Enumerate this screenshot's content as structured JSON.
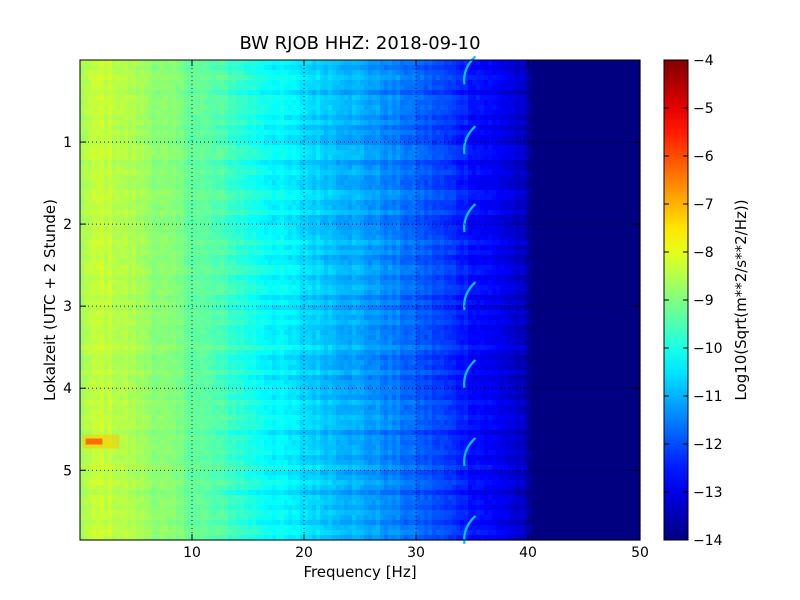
{
  "chart_data": {
    "type": "heatmap",
    "title": "BW RJOB HHZ: 2018-09-10",
    "xlabel": "Frequency [Hz]",
    "ylabel": "Lokalzeit (UTC + 2 Stunde)",
    "xlim": [
      0,
      50
    ],
    "ylim": [
      5.85,
      0
    ],
    "x_ticks": [
      10,
      20,
      30,
      40,
      50
    ],
    "y_ticks": [
      1,
      2,
      3,
      4,
      5
    ],
    "grid": true,
    "grid_style": "dotted",
    "colormap": "jet",
    "colorbar": {
      "label": "Log10(Sqrt(m**2/s**2/Hz))",
      "range": [
        -14,
        -4
      ],
      "ticks": [
        -4,
        -5,
        -6,
        -7,
        -8,
        -9,
        -10,
        -11,
        -12,
        -13,
        -14
      ]
    },
    "profile": {
      "description_units": "frequency Hz vs typical log10 amplitude",
      "frequency": [
        0,
        2,
        5,
        8,
        10,
        13,
        16,
        20,
        24,
        28,
        32,
        35,
        38,
        39.5,
        40.5,
        50
      ],
      "log_amplitude": [
        -8.6,
        -8.3,
        -8.6,
        -9.0,
        -9.2,
        -9.6,
        -10.1,
        -10.6,
        -11.0,
        -11.5,
        -12.1,
        -12.6,
        -13.0,
        -13.4,
        -14.0,
        -14.0
      ]
    },
    "features": [
      {
        "kind": "spectral_line",
        "frequency": 34.5,
        "times": [
          0.2,
          1.05,
          2.0,
          2.95,
          3.9,
          4.85,
          5.8
        ]
      },
      {
        "kind": "transient_high",
        "frequency_range": [
          0.5,
          2.0
        ],
        "time": 4.65,
        "value": -5.2
      }
    ]
  }
}
